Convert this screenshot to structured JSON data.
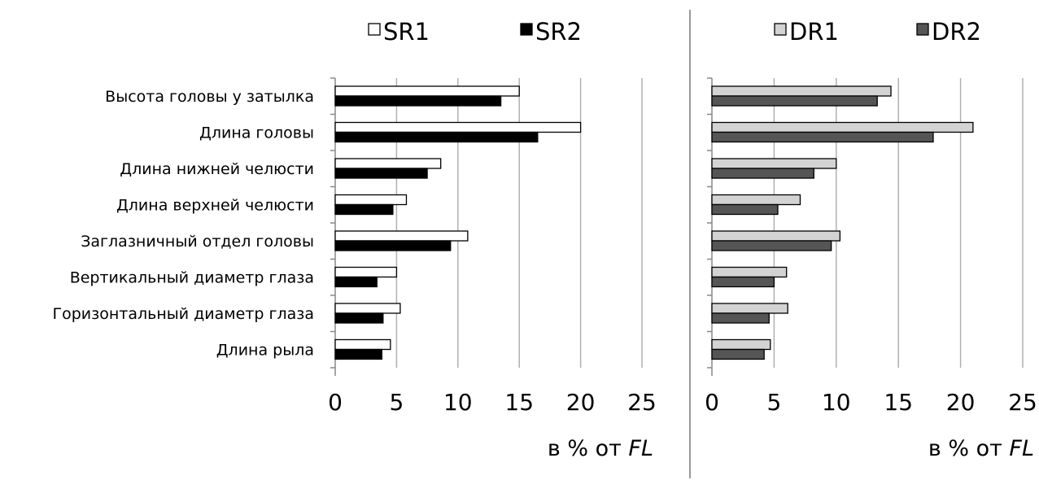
{
  "chart_data": [
    {
      "type": "bar",
      "orientation": "horizontal",
      "categories": [
        "Высота головы у затылка",
        "Длина головы",
        "Длина нижней челюсти",
        "Длина верхней челюсти",
        "Заглазничный отдел головы",
        "Вертикальный диаметр глаза",
        "Горизонтальный диаметр глаза",
        "Длина рыла"
      ],
      "series": [
        {
          "name": "SR1",
          "color": "#ffffff",
          "values": [
            15.0,
            20.0,
            8.6,
            5.8,
            10.8,
            5.0,
            5.3,
            4.5
          ]
        },
        {
          "name": "SR2",
          "color": "#000000",
          "values": [
            13.5,
            16.5,
            7.5,
            4.7,
            9.4,
            3.4,
            3.9,
            3.8
          ]
        }
      ],
      "xlim": [
        0,
        25
      ],
      "xticks": [
        "0",
        "5",
        "10",
        "15",
        "20",
        "25"
      ],
      "xlabel_prefix": "в % от",
      "xlabel_italic": "FL",
      "grid": "vertical",
      "legend": "top"
    },
    {
      "type": "bar",
      "orientation": "horizontal",
      "categories": [
        "Высота головы у затылка",
        "Длина головы",
        "Длина нижней челюсти",
        "Длина верхней челюсти",
        "Заглазничный отдел головы",
        "Вертикальный диаметр глаза",
        "Горизонтальный диаметр глаза",
        "Длина рыла"
      ],
      "series": [
        {
          "name": "DR1",
          "color": "#d3d3d3",
          "values": [
            14.4,
            21.0,
            10.0,
            7.1,
            10.3,
            6.0,
            6.1,
            4.7
          ]
        },
        {
          "name": "DR2",
          "color": "#555555",
          "values": [
            13.3,
            17.8,
            8.2,
            5.3,
            9.6,
            5.0,
            4.6,
            4.2
          ]
        }
      ],
      "xlim": [
        0,
        25
      ],
      "xticks": [
        "0",
        "5",
        "10",
        "15",
        "20",
        "25"
      ],
      "xlabel_prefix": "в % от",
      "xlabel_italic": "FL",
      "grid": "vertical",
      "legend": "top"
    }
  ]
}
